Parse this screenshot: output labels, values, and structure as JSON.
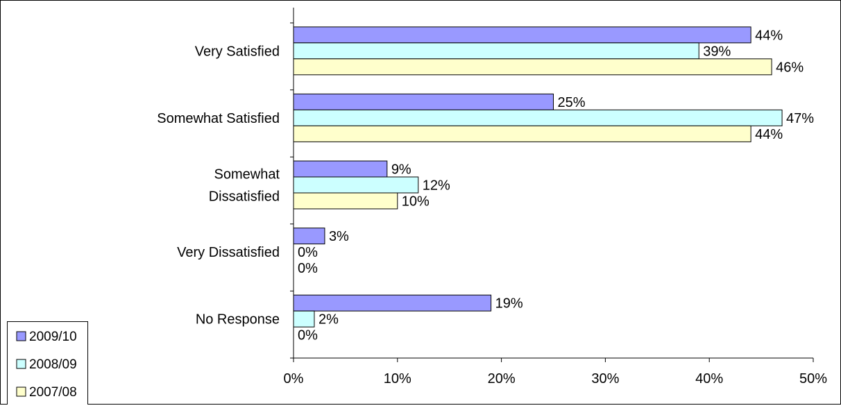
{
  "chart_data": {
    "type": "bar",
    "orientation": "horizontal",
    "categories": [
      "Very Satisfied",
      "Somewhat Satisfied",
      "Somewhat Dissatisfied",
      "Very Dissatisfied",
      "No Response"
    ],
    "category_lines": [
      [
        "Very Satisfied"
      ],
      [
        "Somewhat Satisfied"
      ],
      [
        "Somewhat",
        "Dissatisfied"
      ],
      [
        "Very Dissatisfied"
      ],
      [
        "No Response"
      ]
    ],
    "series": [
      {
        "name": "2009/10",
        "color": "#9999FF",
        "values": [
          44,
          25,
          9,
          3,
          19
        ],
        "labels": [
          "44%",
          "25%",
          "9%",
          "3%",
          "19%"
        ]
      },
      {
        "name": "2008/09",
        "color": "#CCFFFF",
        "values": [
          39,
          47,
          12,
          0,
          2
        ],
        "labels": [
          "39%",
          "47%",
          "12%",
          "0%",
          "2%"
        ]
      },
      {
        "name": "2007/08",
        "color": "#FFFFCC",
        "values": [
          46,
          44,
          10,
          0,
          0
        ],
        "labels": [
          "46%",
          "44%",
          "10%",
          "0%",
          "0%"
        ]
      }
    ],
    "xlim": [
      0,
      50
    ],
    "xticks": [
      "0%",
      "10%",
      "20%",
      "30%",
      "40%",
      "50%"
    ],
    "xlabel": "",
    "ylabel": "",
    "title": "",
    "legend_position": "bottom-left",
    "grid": false
  }
}
